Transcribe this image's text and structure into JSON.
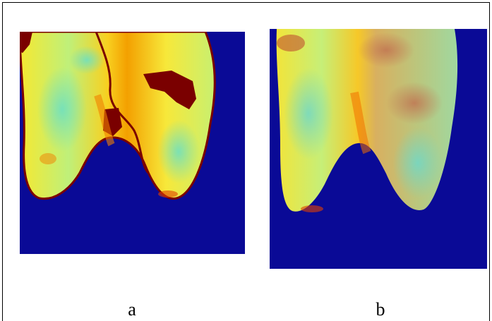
{
  "figure": {
    "panels": [
      {
        "id": "a",
        "caption": "a"
      },
      {
        "id": "b",
        "caption": "b"
      }
    ],
    "colors": {
      "background": "#0a0a96",
      "hot": "#7a0000",
      "warm": "#f0a000",
      "yellow": "#f4f040",
      "cool": "#60e0c0"
    }
  }
}
